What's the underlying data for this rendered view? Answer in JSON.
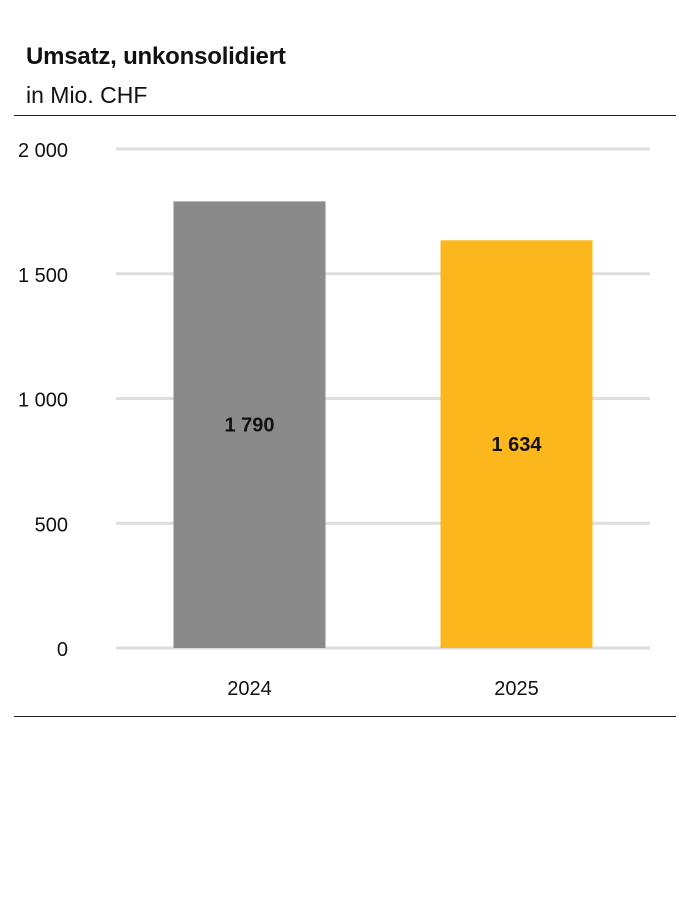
{
  "header": {
    "title": "Umsatz, unkonsolidiert",
    "subtitle": "in Mio. CHF"
  },
  "chart_data": {
    "type": "bar",
    "title": "Umsatz, unkonsolidiert",
    "subtitle": "in Mio. CHF",
    "xlabel": "",
    "ylabel": "",
    "categories": [
      "2024",
      "2025"
    ],
    "values": [
      1790,
      1634
    ],
    "value_labels": [
      "1 790",
      "1 634"
    ],
    "bar_colors": [
      "#8a8a8a",
      "#fbb71c"
    ],
    "ylim": [
      0,
      2000
    ],
    "yticks": [
      0,
      500,
      1000,
      1500,
      2000
    ],
    "ytick_labels": [
      "0",
      "500",
      "1 000",
      "1 500",
      "2 000"
    ],
    "grid": true,
    "legend": "none"
  }
}
